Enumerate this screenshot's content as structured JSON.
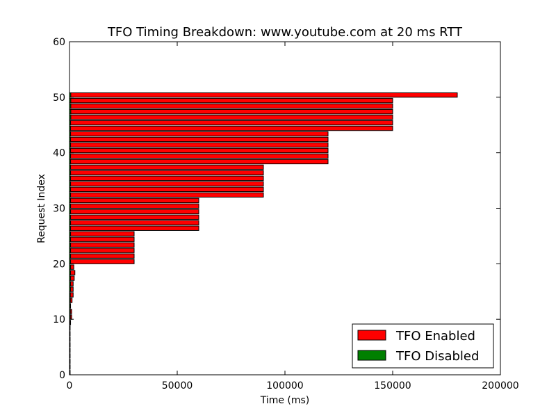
{
  "chart_data": {
    "type": "bar",
    "orientation": "horizontal",
    "stacked": false,
    "title": "TFO Timing Breakdown: www.youtube.com at 20 ms RTT",
    "xlabel": "Time (ms)",
    "ylabel": "Request Index",
    "xlim": [
      0,
      200000
    ],
    "ylim": [
      0,
      60
    ],
    "xticks": [
      0,
      50000,
      100000,
      150000,
      200000
    ],
    "yticks": [
      0,
      10,
      20,
      30,
      40,
      50
    ],
    "grid": false,
    "legend_position": "lower-right",
    "series": [
      {
        "name": "TFO Enabled",
        "color": "#ff0000",
        "y": [
          0,
          1,
          2,
          3,
          4,
          5,
          6,
          7,
          8,
          9,
          10,
          11,
          12,
          13,
          14,
          15,
          16,
          17,
          18,
          19,
          20,
          21,
          22,
          23,
          24,
          25,
          26,
          27,
          28,
          29,
          30,
          31,
          32,
          33,
          34,
          35,
          36,
          37,
          38,
          39,
          40,
          41,
          42,
          43,
          44,
          45,
          46,
          47,
          48,
          49,
          50
        ],
        "values": [
          0,
          0,
          0,
          0,
          0,
          0,
          0,
          0,
          0,
          500,
          1000,
          1000,
          500,
          1200,
          1700,
          1700,
          1700,
          2200,
          2500,
          2000,
          30000,
          30000,
          30000,
          30000,
          30000,
          30000,
          60000,
          60000,
          60000,
          60000,
          60000,
          60000,
          90000,
          90000,
          90000,
          90000,
          90000,
          90000,
          120000,
          120000,
          120000,
          120000,
          120000,
          120000,
          150000,
          150000,
          150000,
          150000,
          150000,
          150000,
          180000
        ]
      },
      {
        "name": "TFO Disabled",
        "color": "#008000",
        "y": [
          0,
          1,
          2,
          3,
          4,
          5,
          6,
          7,
          8,
          9,
          10,
          11,
          12,
          13,
          14,
          15,
          16,
          17,
          18,
          19,
          20,
          21,
          22,
          23,
          24,
          25,
          26,
          27,
          28,
          29,
          30,
          31,
          32,
          33,
          34,
          35,
          36,
          37,
          38,
          39,
          40,
          41,
          42,
          43,
          44,
          45,
          46,
          47,
          48,
          49,
          50
        ],
        "values": [
          300,
          300,
          300,
          300,
          300,
          300,
          300,
          300,
          300,
          300,
          400,
          400,
          400,
          400,
          400,
          500,
          500,
          500,
          500,
          500,
          500,
          500,
          500,
          500,
          500,
          500,
          500,
          500,
          500,
          500,
          500,
          500,
          500,
          500,
          500,
          500,
          500,
          500,
          500,
          500,
          500,
          500,
          500,
          500,
          500,
          500,
          600,
          600,
          600,
          600,
          600
        ]
      }
    ]
  }
}
